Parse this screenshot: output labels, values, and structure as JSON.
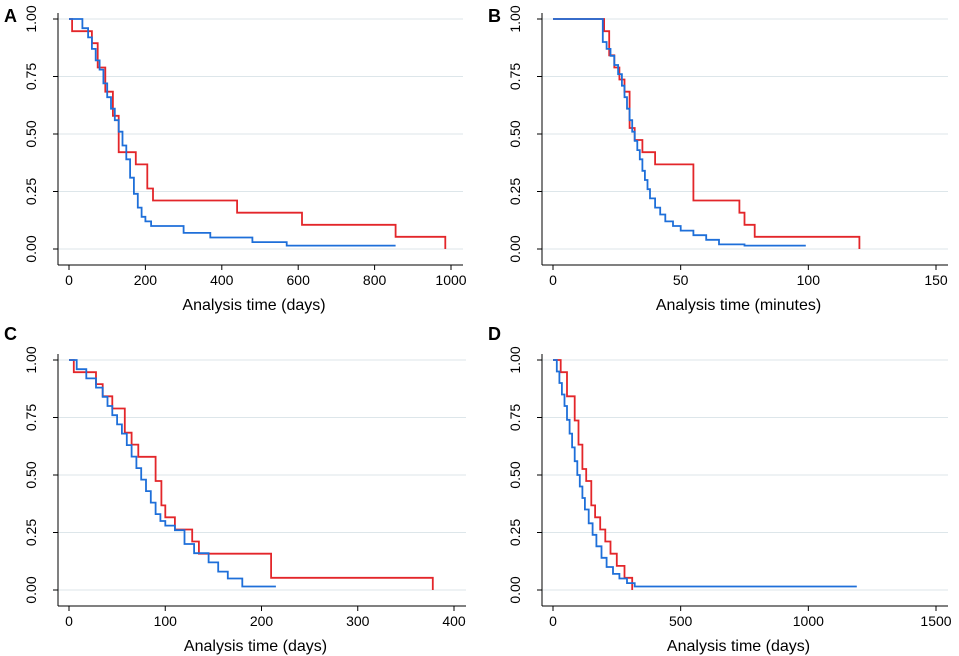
{
  "chart_data": [
    {
      "panel_label": "A",
      "type": "line",
      "step": true,
      "xlabel": "Analysis time (days)",
      "ylabel": "",
      "xlim": [
        0,
        1000
      ],
      "ylim": [
        0,
        1
      ],
      "xticks": [
        "0",
        "200",
        "400",
        "600",
        "800",
        "1000"
      ],
      "xtick_values": [
        0,
        200,
        400,
        600,
        800,
        1000
      ],
      "yticks": [
        "0.00",
        "0.25",
        "0.50",
        "0.75",
        "1.00"
      ],
      "ytick_values": [
        0,
        0.25,
        0.5,
        0.75,
        1.0
      ],
      "grid": true,
      "series": [
        {
          "name": "red",
          "color": "#e3262a",
          "x": [
            0,
            8,
            60,
            75,
            95,
            115,
            130,
            175,
            205,
            220,
            440,
            610,
            855,
            985
          ],
          "y": [
            1.0,
            0.947,
            0.895,
            0.789,
            0.684,
            0.579,
            0.421,
            0.368,
            0.263,
            0.211,
            0.158,
            0.105,
            0.053,
            0.0
          ]
        },
        {
          "name": "blue",
          "color": "#1e6fd9",
          "x": [
            0,
            35,
            50,
            60,
            70,
            80,
            90,
            100,
            110,
            120,
            130,
            140,
            150,
            160,
            170,
            180,
            190,
            200,
            215,
            240,
            300,
            370,
            480,
            570,
            855
          ],
          "y": [
            1.0,
            0.96,
            0.92,
            0.87,
            0.82,
            0.78,
            0.72,
            0.66,
            0.61,
            0.56,
            0.51,
            0.45,
            0.39,
            0.31,
            0.24,
            0.18,
            0.14,
            0.12,
            0.1,
            0.1,
            0.07,
            0.05,
            0.03,
            0.015,
            0.015
          ]
        }
      ]
    },
    {
      "panel_label": "B",
      "type": "line",
      "step": true,
      "xlabel": "Analysis time (minutes)",
      "ylabel": "",
      "xlim": [
        0,
        150
      ],
      "ylim": [
        0,
        1
      ],
      "xticks": [
        "0",
        "50",
        "100",
        "150"
      ],
      "xtick_values": [
        0,
        50,
        100,
        150
      ],
      "yticks": [
        "0.00",
        "0.25",
        "0.50",
        "0.75",
        "1.00"
      ],
      "ytick_values": [
        0,
        0.25,
        0.5,
        0.75,
        1.0
      ],
      "grid": true,
      "series": [
        {
          "name": "red",
          "color": "#e3262a",
          "x": [
            0,
            20,
            22,
            24,
            26,
            28,
            30,
            32,
            35,
            40,
            55,
            73,
            75,
            79,
            120
          ],
          "y": [
            1.0,
            0.947,
            0.842,
            0.789,
            0.737,
            0.684,
            0.526,
            0.474,
            0.421,
            0.368,
            0.211,
            0.158,
            0.105,
            0.053,
            0.0
          ]
        },
        {
          "name": "blue",
          "color": "#1e6fd9",
          "x": [
            0,
            19.5,
            21,
            22.5,
            24,
            25.5,
            27,
            28,
            29,
            30,
            31,
            32,
            33,
            34,
            35,
            36,
            37,
            38,
            40,
            42,
            44,
            47,
            50,
            55,
            60,
            65,
            75,
            99
          ],
          "y": [
            1.0,
            0.9,
            0.87,
            0.84,
            0.8,
            0.76,
            0.71,
            0.66,
            0.61,
            0.56,
            0.51,
            0.47,
            0.43,
            0.39,
            0.34,
            0.3,
            0.26,
            0.22,
            0.18,
            0.15,
            0.12,
            0.1,
            0.08,
            0.06,
            0.04,
            0.02,
            0.015,
            0.015
          ]
        }
      ]
    },
    {
      "panel_label": "C",
      "type": "line",
      "step": true,
      "xlabel": "Analysis time (days)",
      "ylabel": "",
      "xlim": [
        0,
        400
      ],
      "ylim": [
        0,
        1
      ],
      "xticks": [
        "0",
        "100",
        "200",
        "300",
        "400"
      ],
      "xtick_values": [
        0,
        100,
        200,
        300,
        400
      ],
      "yticks": [
        "0.00",
        "0.25",
        "0.50",
        "0.75",
        "1.00"
      ],
      "ytick_values": [
        0,
        0.25,
        0.5,
        0.75,
        1.0
      ],
      "grid": true,
      "series": [
        {
          "name": "red",
          "color": "#e3262a",
          "x": [
            0,
            5,
            28,
            35,
            45,
            58,
            65,
            72,
            90,
            96,
            100,
            110,
            128,
            135,
            210,
            378
          ],
          "y": [
            1.0,
            0.947,
            0.895,
            0.842,
            0.789,
            0.684,
            0.632,
            0.579,
            0.474,
            0.368,
            0.316,
            0.263,
            0.211,
            0.158,
            0.053,
            0.0
          ]
        },
        {
          "name": "blue",
          "color": "#1e6fd9",
          "x": [
            0,
            8,
            18,
            28,
            35,
            40,
            45,
            50,
            55,
            60,
            65,
            70,
            75,
            80,
            85,
            90,
            95,
            100,
            110,
            120,
            130,
            145,
            155,
            165,
            180,
            215
          ],
          "y": [
            1.0,
            0.96,
            0.92,
            0.88,
            0.84,
            0.8,
            0.76,
            0.72,
            0.68,
            0.63,
            0.58,
            0.53,
            0.48,
            0.43,
            0.38,
            0.33,
            0.3,
            0.28,
            0.26,
            0.2,
            0.16,
            0.12,
            0.08,
            0.05,
            0.015,
            0.015
          ]
        }
      ]
    },
    {
      "panel_label": "D",
      "type": "line",
      "step": true,
      "xlabel": "Analysis time (days)",
      "ylabel": "",
      "xlim": [
        0,
        1500
      ],
      "ylim": [
        0,
        1
      ],
      "xticks": [
        "0",
        "500",
        "1000",
        "1500"
      ],
      "xtick_values": [
        0,
        500,
        1000,
        1500
      ],
      "yticks": [
        "0.00",
        "0.25",
        "0.50",
        "0.75",
        "1.00"
      ],
      "ytick_values": [
        0,
        0.25,
        0.5,
        0.75,
        1.0
      ],
      "grid": true,
      "series": [
        {
          "name": "red",
          "color": "#e3262a",
          "x": [
            0,
            30,
            55,
            85,
            100,
            115,
            130,
            150,
            165,
            185,
            205,
            225,
            250,
            280,
            310
          ],
          "y": [
            1.0,
            0.947,
            0.842,
            0.737,
            0.632,
            0.526,
            0.474,
            0.368,
            0.316,
            0.263,
            0.211,
            0.158,
            0.105,
            0.053,
            0.0
          ]
        },
        {
          "name": "blue",
          "color": "#1e6fd9",
          "x": [
            0,
            15,
            25,
            35,
            45,
            55,
            65,
            75,
            85,
            95,
            105,
            115,
            125,
            140,
            155,
            170,
            190,
            210,
            235,
            260,
            290,
            320,
            1190
          ],
          "y": [
            1.0,
            0.95,
            0.9,
            0.85,
            0.8,
            0.74,
            0.68,
            0.62,
            0.56,
            0.5,
            0.45,
            0.4,
            0.35,
            0.29,
            0.24,
            0.19,
            0.14,
            0.1,
            0.07,
            0.05,
            0.03,
            0.015,
            0.015
          ]
        }
      ]
    }
  ]
}
